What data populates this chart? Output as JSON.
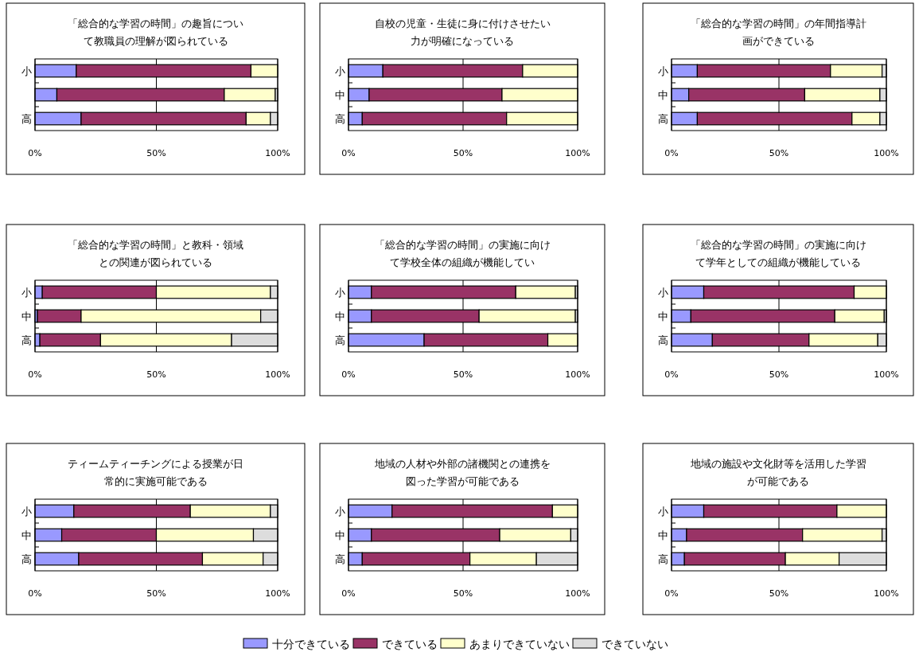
{
  "chart_data": [
    {
      "type": "bar",
      "orientation": "horizontal",
      "stacked": true,
      "title": "「総合的な学習の時間」の趣旨について教職員の理解が図られている",
      "categories": [
        "小",
        null,
        "高"
      ],
      "xlim": [
        0,
        100
      ],
      "xticks": [
        {
          "value": 0,
          "label": "0%"
        },
        {
          "value": 50,
          "label": "50%"
        },
        {
          "value": 100,
          "label": "100%"
        }
      ],
      "grid": "x",
      "series": [
        {
          "color": "#9999ff",
          "values": [
            17,
            9,
            19
          ]
        },
        {
          "color": "#993366",
          "values": [
            72,
            69,
            68
          ]
        },
        {
          "color": "#ffffcc",
          "values": [
            11,
            21,
            10
          ]
        },
        {
          "color": "#dddddd",
          "values": [
            0,
            1,
            3
          ]
        }
      ]
    },
    {
      "type": "bar",
      "orientation": "horizontal",
      "stacked": true,
      "title": "自校の児童・生徒に身に付けさせたい力が明確になっている",
      "categories": [
        "小",
        "中",
        "高"
      ],
      "xlim": [
        0,
        100
      ],
      "xticks": [
        {
          "value": 0,
          "label": "0%"
        },
        {
          "value": 50,
          "label": "50%"
        },
        {
          "value": 100,
          "label": "100%"
        }
      ],
      "grid": "x",
      "series": [
        {
          "color": "#9999ff",
          "values": [
            15,
            9,
            6
          ]
        },
        {
          "color": "#993366",
          "values": [
            61,
            58,
            63
          ]
        },
        {
          "color": "#ffffcc",
          "values": [
            24,
            33,
            31
          ]
        },
        {
          "color": "#dddddd",
          "values": [
            0,
            0,
            0
          ]
        }
      ]
    },
    {
      "type": "bar",
      "orientation": "horizontal",
      "stacked": true,
      "title": "「総合的な学習の時間」の年間指導計画ができている",
      "categories": [
        "小",
        "中",
        "高"
      ],
      "xlim": [
        0,
        100
      ],
      "xticks": [
        {
          "value": 0,
          "label": "0%"
        },
        {
          "value": 50,
          "label": "50%"
        },
        {
          "value": 100,
          "label": "100%"
        }
      ],
      "grid": "x",
      "series": [
        {
          "color": "#9999ff",
          "values": [
            12,
            8,
            12
          ]
        },
        {
          "color": "#993366",
          "values": [
            62,
            54,
            72
          ]
        },
        {
          "color": "#ffffcc",
          "values": [
            24,
            35,
            13
          ]
        },
        {
          "color": "#dddddd",
          "values": [
            2,
            3,
            3
          ]
        }
      ]
    },
    {
      "type": "bar",
      "orientation": "horizontal",
      "stacked": true,
      "title": "「総合的な学習の時間」と教科・領域との関連が図られている",
      "categories": [
        "小",
        "中",
        "高"
      ],
      "xlim": [
        0,
        100
      ],
      "xticks": [
        {
          "value": 0,
          "label": "0%"
        },
        {
          "value": 50,
          "label": "50%"
        },
        {
          "value": 100,
          "label": "100%"
        }
      ],
      "grid": "x",
      "series": [
        {
          "color": "#9999ff",
          "values": [
            3,
            1,
            2
          ]
        },
        {
          "color": "#993366",
          "values": [
            47,
            18,
            25
          ]
        },
        {
          "color": "#ffffcc",
          "values": [
            47,
            74,
            54
          ]
        },
        {
          "color": "#dddddd",
          "values": [
            3,
            7,
            19
          ]
        }
      ]
    },
    {
      "type": "bar",
      "orientation": "horizontal",
      "stacked": true,
      "title": "「総合的な学習の時間」の実施に向けて学校全体の組織が機能してい",
      "categories": [
        "小",
        "中",
        "高"
      ],
      "xlim": [
        0,
        100
      ],
      "xticks": [
        {
          "value": 0,
          "label": "0%"
        },
        {
          "value": 50,
          "label": "50%"
        },
        {
          "value": 100,
          "label": "100%"
        }
      ],
      "grid": "x",
      "series": [
        {
          "color": "#9999ff",
          "values": [
            10,
            10,
            33
          ]
        },
        {
          "color": "#993366",
          "values": [
            63,
            47,
            54
          ]
        },
        {
          "color": "#ffffcc",
          "values": [
            26,
            42,
            13
          ]
        },
        {
          "color": "#dddddd",
          "values": [
            1,
            1,
            0
          ]
        }
      ]
    },
    {
      "type": "bar",
      "orientation": "horizontal",
      "stacked": true,
      "title": "「総合的な学習の時間」の実施に向けて学年としての組織が機能している",
      "categories": [
        "小",
        "中",
        "高"
      ],
      "xlim": [
        0,
        100
      ],
      "xticks": [
        {
          "value": 0,
          "label": "0%"
        },
        {
          "value": 50,
          "label": "50%"
        },
        {
          "value": 100,
          "label": "100%"
        }
      ],
      "grid": "x",
      "series": [
        {
          "color": "#9999ff",
          "values": [
            15,
            9,
            19
          ]
        },
        {
          "color": "#993366",
          "values": [
            70,
            67,
            45
          ]
        },
        {
          "color": "#ffffcc",
          "values": [
            15,
            23,
            32
          ]
        },
        {
          "color": "#dddddd",
          "values": [
            0,
            1,
            4
          ]
        }
      ]
    },
    {
      "type": "bar",
      "orientation": "horizontal",
      "stacked": true,
      "title": "ティームティーチングによる授業が日常的に実施可能である",
      "categories": [
        "小",
        "中",
        "高"
      ],
      "xlim": [
        0,
        100
      ],
      "xticks": [
        {
          "value": 0,
          "label": "0%"
        },
        {
          "value": 50,
          "label": "50%"
        },
        {
          "value": 100,
          "label": "100%"
        }
      ],
      "grid": "x",
      "series": [
        {
          "color": "#9999ff",
          "values": [
            16,
            11,
            18
          ]
        },
        {
          "color": "#993366",
          "values": [
            48,
            39,
            51
          ]
        },
        {
          "color": "#ffffcc",
          "values": [
            33,
            40,
            25
          ]
        },
        {
          "color": "#dddddd",
          "values": [
            3,
            10,
            6
          ]
        }
      ]
    },
    {
      "type": "bar",
      "orientation": "horizontal",
      "stacked": true,
      "title": "地域の人材や外部の諸機関との連携を図った学習が可能である",
      "categories": [
        "小",
        "中",
        "高"
      ],
      "xlim": [
        0,
        100
      ],
      "xticks": [
        {
          "value": 0,
          "label": "0%"
        },
        {
          "value": 50,
          "label": "50%"
        },
        {
          "value": 100,
          "label": "100%"
        }
      ],
      "grid": "x",
      "series": [
        {
          "color": "#9999ff",
          "values": [
            19,
            10,
            6
          ]
        },
        {
          "color": "#993366",
          "values": [
            70,
            56,
            47
          ]
        },
        {
          "color": "#ffffcc",
          "values": [
            11,
            31,
            29
          ]
        },
        {
          "color": "#dddddd",
          "values": [
            0,
            3,
            18
          ]
        }
      ]
    },
    {
      "type": "bar",
      "orientation": "horizontal",
      "stacked": true,
      "title": "地域の施設や文化財等を活用した学習が可能である",
      "categories": [
        "小",
        "中",
        "高"
      ],
      "xlim": [
        0,
        100
      ],
      "xticks": [
        {
          "value": 0,
          "label": "0%"
        },
        {
          "value": 50,
          "label": "50%"
        },
        {
          "value": 100,
          "label": "100%"
        }
      ],
      "grid": "x",
      "legend": "bottom",
      "series": [
        {
          "name": "十分できている",
          "color": "#9999ff",
          "values": [
            15,
            7,
            6
          ]
        },
        {
          "name": "できている",
          "color": "#993366",
          "values": [
            62,
            54,
            47
          ]
        },
        {
          "name": "あまりできていない",
          "color": "#ffffcc",
          "values": [
            23,
            37,
            25
          ]
        },
        {
          "name": "できていない",
          "color": "#dddddd",
          "values": [
            0,
            2,
            22
          ]
        }
      ]
    }
  ]
}
